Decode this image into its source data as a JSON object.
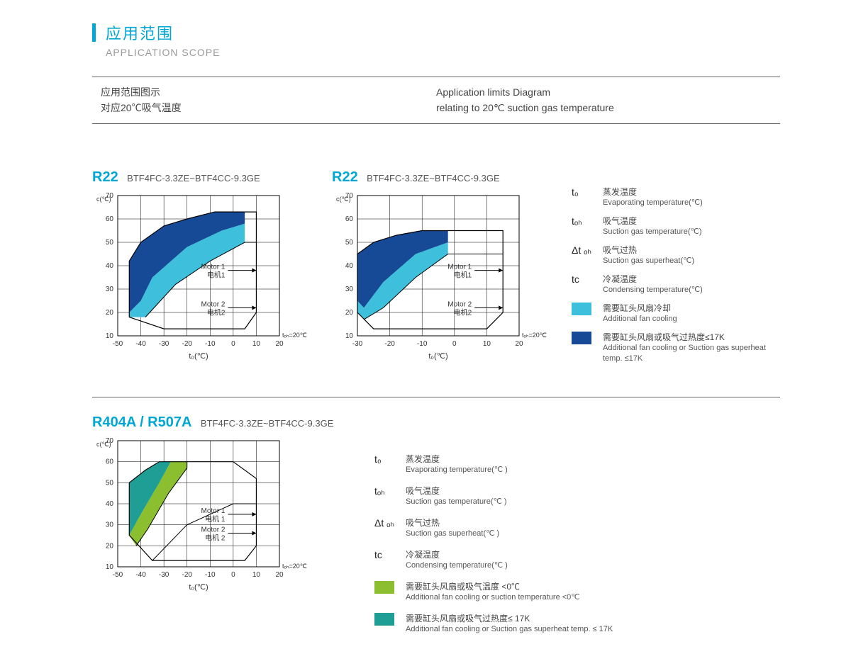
{
  "header": {
    "accent_color": "#00a7d4",
    "title_cn": "应用范围",
    "title_en": "APPLICATION SCOPE",
    "meta_left_l1": "应用范围图示",
    "meta_left_l2": "对应20℃吸气温度",
    "meta_right_l1": "Application limits Diagram",
    "meta_right_l2": "relating to 20℃ suction gas temperature"
  },
  "r22_1": {
    "refr": "R22",
    "models": "BTF4FC-3.3ZE~BTF4CC-9.3GE",
    "x_axis": "t₀(℃)",
    "y_axis": "c(℃)",
    "xlim": [
      -50,
      20
    ],
    "ylim": [
      10,
      70
    ],
    "xticks": [
      -50,
      -40,
      -30,
      -20,
      -10,
      0,
      10,
      20
    ],
    "yticks": [
      10,
      20,
      30,
      40,
      50,
      60,
      70
    ],
    "note": "tₒₕ=20℃",
    "motor1_cn": "电机1",
    "motor1_en": "Motor 1",
    "motor2_cn": "电机2",
    "motor2_en": "Motor 2",
    "dark_poly": [
      [
        -45,
        20
      ],
      [
        -45,
        42
      ],
      [
        -40,
        50
      ],
      [
        -30,
        57
      ],
      [
        -20,
        60
      ],
      [
        -8,
        63
      ],
      [
        5,
        63
      ],
      [
        5,
        58
      ],
      [
        -5,
        55
      ],
      [
        -20,
        48
      ],
      [
        -35,
        35
      ],
      [
        -40,
        25
      ],
      [
        -45,
        20
      ]
    ],
    "light_poly": [
      [
        -45,
        20
      ],
      [
        -40,
        25
      ],
      [
        -35,
        35
      ],
      [
        -20,
        48
      ],
      [
        -5,
        55
      ],
      [
        5,
        58
      ],
      [
        5,
        50
      ],
      [
        -10,
        42
      ],
      [
        -25,
        32
      ],
      [
        -38,
        18
      ],
      [
        -45,
        18
      ],
      [
        -45,
        20
      ]
    ],
    "outline": [
      [
        -45,
        18
      ],
      [
        -45,
        42
      ],
      [
        -40,
        50
      ],
      [
        -30,
        57
      ],
      [
        -20,
        60
      ],
      [
        -8,
        63
      ],
      [
        5,
        63
      ],
      [
        10,
        63
      ],
      [
        10,
        20
      ],
      [
        5,
        13
      ],
      [
        -30,
        13
      ],
      [
        -45,
        18
      ]
    ],
    "inner": [
      [
        -38,
        18
      ],
      [
        -25,
        32
      ],
      [
        -10,
        42
      ],
      [
        5,
        50
      ],
      [
        10,
        50
      ]
    ],
    "motor1_line_y": 38,
    "motor1_line_x": 10,
    "motor2_line_y": 22,
    "motor2_line_x": 10
  },
  "r22_2": {
    "refr": "R22",
    "models": "BTF4FC-3.3ZE~BTF4CC-9.3GE",
    "x_axis": "t₀(℃)",
    "y_axis": "c(℃)",
    "xlim": [
      -30,
      20
    ],
    "ylim": [
      10,
      70
    ],
    "xticks": [
      -30,
      -20,
      -10,
      0,
      10,
      20
    ],
    "yticks": [
      10,
      20,
      30,
      40,
      50,
      60,
      70
    ],
    "note": "tₒₕ=20℃",
    "motor1_cn": "电机1",
    "motor1_en": "Motor 1",
    "motor2_cn": "电机2",
    "motor2_en": "Motor 2",
    "dark_poly": [
      [
        -30,
        25
      ],
      [
        -30,
        45
      ],
      [
        -25,
        50
      ],
      [
        -18,
        53
      ],
      [
        -10,
        55
      ],
      [
        -2,
        55
      ],
      [
        -2,
        50
      ],
      [
        -12,
        45
      ],
      [
        -22,
        33
      ],
      [
        -28,
        22
      ],
      [
        -30,
        25
      ]
    ],
    "light_poly": [
      [
        -30,
        25
      ],
      [
        -28,
        22
      ],
      [
        -22,
        33
      ],
      [
        -12,
        45
      ],
      [
        -2,
        50
      ],
      [
        -2,
        45
      ],
      [
        -12,
        35
      ],
      [
        -22,
        22
      ],
      [
        -28,
        17
      ],
      [
        -30,
        20
      ],
      [
        -30,
        25
      ]
    ],
    "outline": [
      [
        -30,
        20
      ],
      [
        -30,
        45
      ],
      [
        -25,
        50
      ],
      [
        -18,
        53
      ],
      [
        -10,
        55
      ],
      [
        -2,
        55
      ],
      [
        8,
        55
      ],
      [
        15,
        55
      ],
      [
        15,
        20
      ],
      [
        10,
        13
      ],
      [
        -25,
        13
      ],
      [
        -30,
        20
      ]
    ],
    "inner": [
      [
        -28,
        17
      ],
      [
        -22,
        22
      ],
      [
        -12,
        35
      ],
      [
        -2,
        45
      ],
      [
        15,
        45
      ]
    ],
    "motor1_line_y": 38,
    "motor1_line_x": 15,
    "motor2_line_y": 22,
    "motor2_line_x": 15
  },
  "r404": {
    "refr": "R404A / R507A",
    "models": "BTF4FC-3.3ZE~BTF4CC-9.3GE",
    "x_axis": "t₀(℃)",
    "y_axis": "c(℃)",
    "xlim": [
      -50,
      20
    ],
    "ylim": [
      10,
      70
    ],
    "xticks": [
      -50,
      -40,
      -30,
      -20,
      -10,
      0,
      10,
      20
    ],
    "yticks": [
      10,
      20,
      30,
      40,
      50,
      60,
      70
    ],
    "note": "tₒₕ=20℃",
    "motor1_cn": "电机 1",
    "motor1_en": "Motor 1",
    "motor2_cn": "电机 2",
    "motor2_en": "Motor 2",
    "teal_poly": [
      [
        -45,
        25
      ],
      [
        -45,
        50
      ],
      [
        -38,
        56
      ],
      [
        -32,
        60
      ],
      [
        -27,
        60
      ],
      [
        -32,
        50
      ],
      [
        -40,
        35
      ],
      [
        -45,
        25
      ]
    ],
    "green_poly": [
      [
        -45,
        25
      ],
      [
        -40,
        35
      ],
      [
        -32,
        50
      ],
      [
        -27,
        60
      ],
      [
        -20,
        60
      ],
      [
        -20,
        57
      ],
      [
        -28,
        45
      ],
      [
        -37,
        28
      ],
      [
        -42,
        20
      ],
      [
        -45,
        25
      ]
    ],
    "outline": [
      [
        -45,
        25
      ],
      [
        -45,
        50
      ],
      [
        -38,
        56
      ],
      [
        -32,
        60
      ],
      [
        -20,
        60
      ],
      [
        0,
        60
      ],
      [
        10,
        52
      ],
      [
        10,
        20
      ],
      [
        5,
        13
      ],
      [
        -35,
        13
      ],
      [
        -45,
        25
      ]
    ],
    "inner1": [
      [
        -42,
        20
      ],
      [
        -37,
        28
      ],
      [
        -28,
        45
      ],
      [
        -20,
        57
      ],
      [
        -20,
        60
      ]
    ],
    "inner2": [
      [
        -35,
        13
      ],
      [
        -20,
        30
      ],
      [
        0,
        40
      ],
      [
        10,
        40
      ]
    ],
    "motor1_line_y": 35,
    "motor1_line_x": 10,
    "motor2_line_y": 26,
    "motor2_line_x": 10
  },
  "legend_r22": {
    "to": {
      "sym": "t₀",
      "cn": "蒸发温度",
      "en": "Evaporating temperature(℃)"
    },
    "toh": {
      "sym": "tₒₕ",
      "cn": "吸气温度",
      "en": "Suction gas temperature(℃)"
    },
    "dtoh": {
      "sym": "Δt ₒₕ",
      "cn": "吸气过热",
      "en": "Suction gas superheat(℃)"
    },
    "tc": {
      "sym": "tc",
      "cn": "冷凝温度",
      "en": "Condensing temperature(℃)"
    },
    "light": {
      "color": "#3ec0dc",
      "cn": "需要缸头风扇冷却",
      "en": "Additional fan cooling"
    },
    "dark": {
      "color": "#164a96",
      "cn": "需要缸头风扇或吸气过热度≤17K",
      "en": "Additional fan cooling  or Suction gas superheat temp. ≤17K"
    }
  },
  "legend_r404": {
    "to": {
      "sym": "t₀",
      "cn": "蒸发温度",
      "en": "Evaporating temperature(℃ )"
    },
    "toh": {
      "sym": "tₒₕ",
      "cn": "吸气温度",
      "en": "Suction gas temperature(℃ )"
    },
    "dtoh": {
      "sym": "Δt ₒₕ",
      "cn": "吸气过热",
      "en": "Suction gas superheat(℃ )"
    },
    "tc": {
      "sym": "tc",
      "cn": "冷凝温度",
      "en": "Condensing temperature(℃ )"
    },
    "green": {
      "color": "#8bbf2f",
      "cn": "需要缸头风扇或吸气温度 <0℃",
      "en": "Additional fan cooling or suction temperature <0℃"
    },
    "teal": {
      "color": "#1f9e95",
      "cn": "需要缸头风扇或吸气过热度≤ 17K",
      "en": "Additional fan cooling  or Suction gas superheat temp. ≤ 17K"
    }
  },
  "colors": {
    "dark_blue": "#164a96",
    "light_blue": "#3ec0dc",
    "teal": "#1f9e95",
    "green": "#8bbf2f",
    "grid": "#000",
    "text": "#444"
  }
}
